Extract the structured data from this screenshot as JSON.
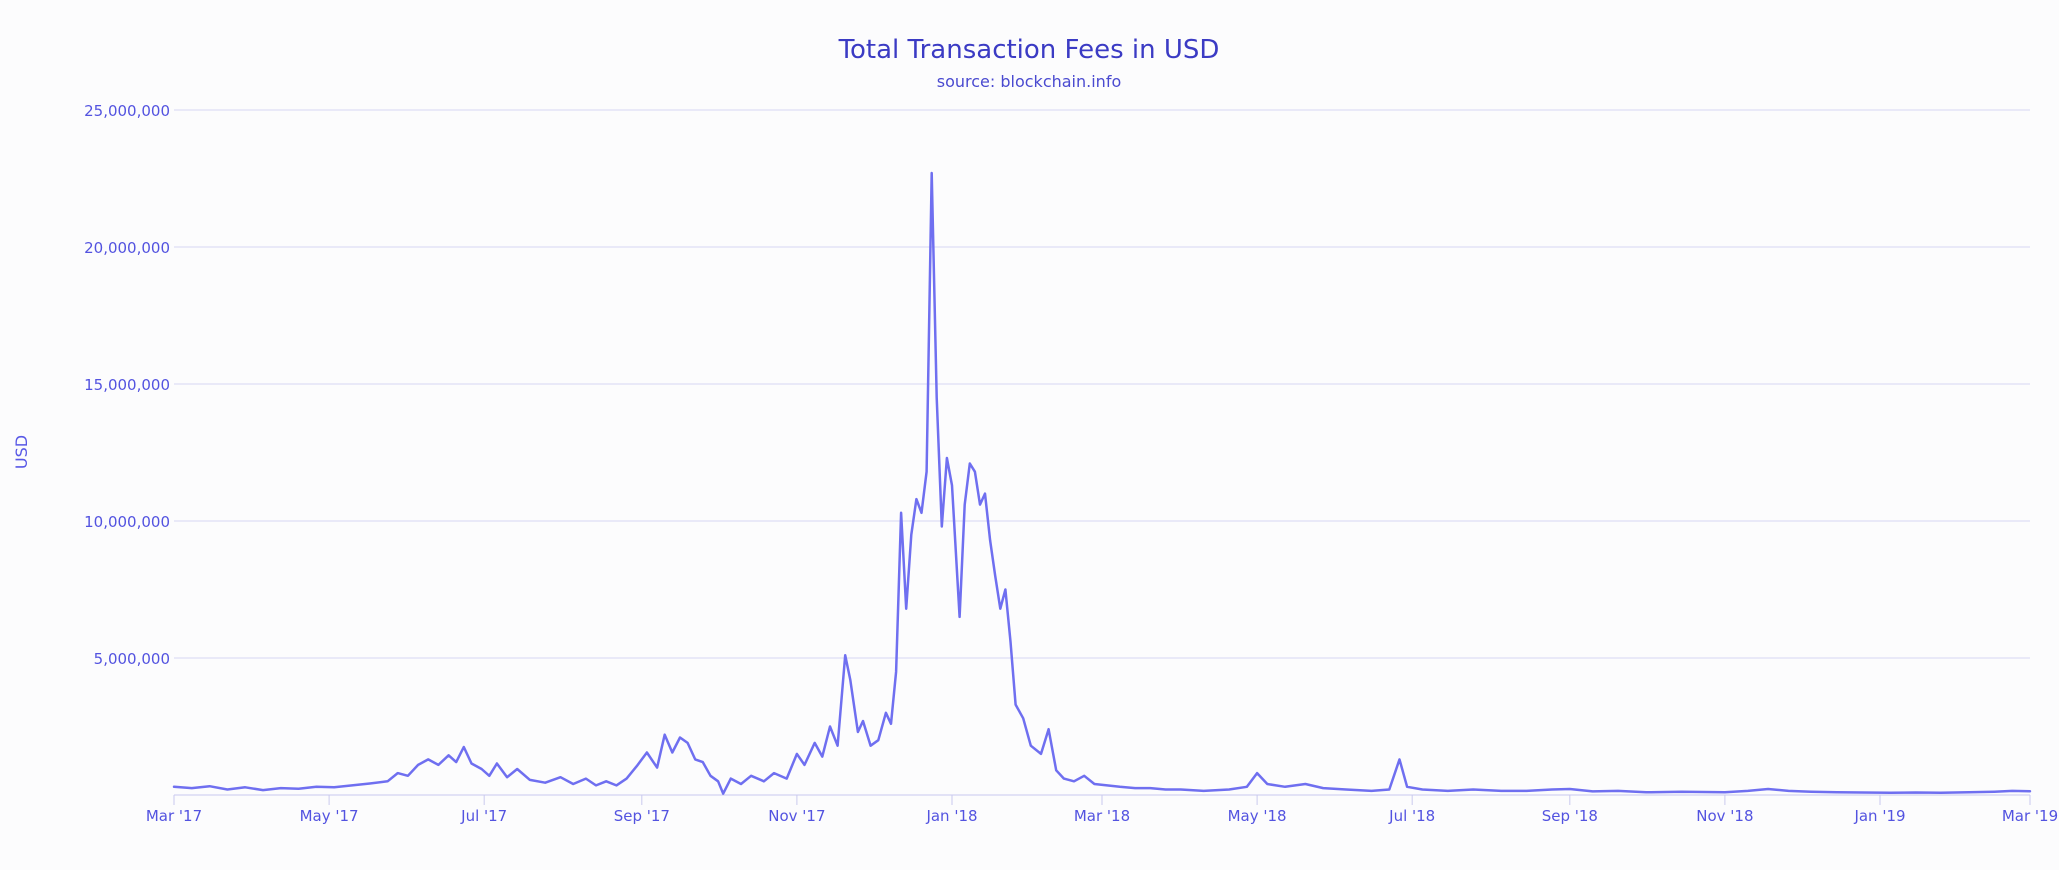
{
  "chart_data": {
    "type": "line",
    "title": "Total Transaction Fees in USD",
    "subtitle": "source: blockchain.info",
    "xlabel": "",
    "ylabel": "USD",
    "ylim": [
      0,
      25000000
    ],
    "xlim": [
      "2017-03-01",
      "2019-03-01"
    ],
    "y_ticks": [
      {
        "value": 5000000,
        "label": "5,000,000"
      },
      {
        "value": 10000000,
        "label": "10,000,000"
      },
      {
        "value": 15000000,
        "label": "15,000,000"
      },
      {
        "value": 20000000,
        "label": "20,000,000"
      },
      {
        "value": 25000000,
        "label": "25,000,000"
      }
    ],
    "x_ticks": [
      {
        "date": "2017-03-01",
        "label": "Mar '17"
      },
      {
        "date": "2017-05-01",
        "label": "May '17"
      },
      {
        "date": "2017-07-01",
        "label": "Jul '17"
      },
      {
        "date": "2017-09-01",
        "label": "Sep '17"
      },
      {
        "date": "2017-11-01",
        "label": "Nov '17"
      },
      {
        "date": "2018-01-01",
        "label": "Jan '18"
      },
      {
        "date": "2018-03-01",
        "label": "Mar '18"
      },
      {
        "date": "2018-05-01",
        "label": "May '18"
      },
      {
        "date": "2018-07-01",
        "label": "Jul '18"
      },
      {
        "date": "2018-09-01",
        "label": "Sep '18"
      },
      {
        "date": "2018-11-01",
        "label": "Nov '18"
      },
      {
        "date": "2019-01-01",
        "label": "Jan '19"
      },
      {
        "date": "2019-03-01",
        "label": "Mar '19"
      }
    ],
    "grid": true,
    "legend": "none",
    "series": [
      {
        "color": "#6f6ff0",
        "points": [
          [
            "2017-03-01",
            300000
          ],
          [
            "2017-03-08",
            250000
          ],
          [
            "2017-03-15",
            320000
          ],
          [
            "2017-03-22",
            200000
          ],
          [
            "2017-03-29",
            280000
          ],
          [
            "2017-04-05",
            180000
          ],
          [
            "2017-04-12",
            250000
          ],
          [
            "2017-04-19",
            230000
          ],
          [
            "2017-04-26",
            300000
          ],
          [
            "2017-05-03",
            280000
          ],
          [
            "2017-05-10",
            350000
          ],
          [
            "2017-05-17",
            420000
          ],
          [
            "2017-05-24",
            500000
          ],
          [
            "2017-05-28",
            800000
          ],
          [
            "2017-06-01",
            700000
          ],
          [
            "2017-06-05",
            1100000
          ],
          [
            "2017-06-09",
            1300000
          ],
          [
            "2017-06-13",
            1100000
          ],
          [
            "2017-06-17",
            1450000
          ],
          [
            "2017-06-20",
            1200000
          ],
          [
            "2017-06-23",
            1750000
          ],
          [
            "2017-06-26",
            1150000
          ],
          [
            "2017-06-30",
            950000
          ],
          [
            "2017-07-03",
            700000
          ],
          [
            "2017-07-06",
            1150000
          ],
          [
            "2017-07-10",
            650000
          ],
          [
            "2017-07-14",
            950000
          ],
          [
            "2017-07-19",
            550000
          ],
          [
            "2017-07-25",
            450000
          ],
          [
            "2017-07-31",
            650000
          ],
          [
            "2017-08-05",
            400000
          ],
          [
            "2017-08-10",
            600000
          ],
          [
            "2017-08-14",
            350000
          ],
          [
            "2017-08-18",
            500000
          ],
          [
            "2017-08-22",
            350000
          ],
          [
            "2017-08-26",
            600000
          ],
          [
            "2017-08-30",
            1050000
          ],
          [
            "2017-09-03",
            1550000
          ],
          [
            "2017-09-07",
            1000000
          ],
          [
            "2017-09-10",
            2200000
          ],
          [
            "2017-09-13",
            1550000
          ],
          [
            "2017-09-16",
            2100000
          ],
          [
            "2017-09-19",
            1900000
          ],
          [
            "2017-09-22",
            1300000
          ],
          [
            "2017-09-25",
            1200000
          ],
          [
            "2017-09-28",
            700000
          ],
          [
            "2017-10-01",
            500000
          ],
          [
            "2017-10-03",
            50000
          ],
          [
            "2017-10-06",
            600000
          ],
          [
            "2017-10-10",
            400000
          ],
          [
            "2017-10-14",
            700000
          ],
          [
            "2017-10-19",
            500000
          ],
          [
            "2017-10-23",
            800000
          ],
          [
            "2017-10-28",
            600000
          ],
          [
            "2017-11-01",
            1500000
          ],
          [
            "2017-11-04",
            1100000
          ],
          [
            "2017-11-08",
            1900000
          ],
          [
            "2017-11-11",
            1400000
          ],
          [
            "2017-11-14",
            2500000
          ],
          [
            "2017-11-17",
            1800000
          ],
          [
            "2017-11-20",
            5100000
          ],
          [
            "2017-11-22",
            4200000
          ],
          [
            "2017-11-25",
            2300000
          ],
          [
            "2017-11-27",
            2700000
          ],
          [
            "2017-11-30",
            1800000
          ],
          [
            "2017-12-03",
            2000000
          ],
          [
            "2017-12-06",
            3000000
          ],
          [
            "2017-12-08",
            2600000
          ],
          [
            "2017-12-10",
            4500000
          ],
          [
            "2017-12-12",
            10300000
          ],
          [
            "2017-12-14",
            6800000
          ],
          [
            "2017-12-16",
            9500000
          ],
          [
            "2017-12-18",
            10800000
          ],
          [
            "2017-12-20",
            10300000
          ],
          [
            "2017-12-22",
            11800000
          ],
          [
            "2017-12-24",
            22700000
          ],
          [
            "2017-12-26",
            14500000
          ],
          [
            "2017-12-28",
            9800000
          ],
          [
            "2017-12-30",
            12300000
          ],
          [
            "2018-01-01",
            11300000
          ],
          [
            "2018-01-04",
            6500000
          ],
          [
            "2018-01-06",
            10600000
          ],
          [
            "2018-01-08",
            12100000
          ],
          [
            "2018-01-10",
            11800000
          ],
          [
            "2018-01-12",
            10600000
          ],
          [
            "2018-01-14",
            11000000
          ],
          [
            "2018-01-16",
            9300000
          ],
          [
            "2018-01-18",
            8000000
          ],
          [
            "2018-01-20",
            6800000
          ],
          [
            "2018-01-22",
            7500000
          ],
          [
            "2018-01-24",
            5600000
          ],
          [
            "2018-01-26",
            3300000
          ],
          [
            "2018-01-29",
            2800000
          ],
          [
            "2018-02-01",
            1800000
          ],
          [
            "2018-02-05",
            1500000
          ],
          [
            "2018-02-08",
            2400000
          ],
          [
            "2018-02-11",
            900000
          ],
          [
            "2018-02-14",
            600000
          ],
          [
            "2018-02-18",
            500000
          ],
          [
            "2018-02-22",
            700000
          ],
          [
            "2018-02-26",
            400000
          ],
          [
            "2018-03-03",
            350000
          ],
          [
            "2018-03-08",
            300000
          ],
          [
            "2018-03-14",
            250000
          ],
          [
            "2018-03-20",
            250000
          ],
          [
            "2018-03-26",
            200000
          ],
          [
            "2018-04-01",
            200000
          ],
          [
            "2018-04-10",
            150000
          ],
          [
            "2018-04-20",
            200000
          ],
          [
            "2018-04-27",
            300000
          ],
          [
            "2018-05-01",
            800000
          ],
          [
            "2018-05-05",
            400000
          ],
          [
            "2018-05-12",
            300000
          ],
          [
            "2018-05-20",
            400000
          ],
          [
            "2018-05-27",
            250000
          ],
          [
            "2018-06-05",
            200000
          ],
          [
            "2018-06-15",
            150000
          ],
          [
            "2018-06-22",
            200000
          ],
          [
            "2018-06-26",
            1300000
          ],
          [
            "2018-06-29",
            300000
          ],
          [
            "2018-07-05",
            200000
          ],
          [
            "2018-07-15",
            150000
          ],
          [
            "2018-07-25",
            200000
          ],
          [
            "2018-08-05",
            150000
          ],
          [
            "2018-08-15",
            150000
          ],
          [
            "2018-08-25",
            200000
          ],
          [
            "2018-09-01",
            220000
          ],
          [
            "2018-09-10",
            130000
          ],
          [
            "2018-09-20",
            150000
          ],
          [
            "2018-10-01",
            100000
          ],
          [
            "2018-10-15",
            120000
          ],
          [
            "2018-11-01",
            100000
          ],
          [
            "2018-11-10",
            150000
          ],
          [
            "2018-11-18",
            220000
          ],
          [
            "2018-11-26",
            150000
          ],
          [
            "2018-12-05",
            120000
          ],
          [
            "2018-12-15",
            100000
          ],
          [
            "2018-12-25",
            90000
          ],
          [
            "2019-01-05",
            80000
          ],
          [
            "2019-01-15",
            90000
          ],
          [
            "2019-01-25",
            80000
          ],
          [
            "2019-02-05",
            100000
          ],
          [
            "2019-02-15",
            120000
          ],
          [
            "2019-02-22",
            150000
          ],
          [
            "2019-03-01",
            140000
          ]
        ]
      }
    ]
  }
}
